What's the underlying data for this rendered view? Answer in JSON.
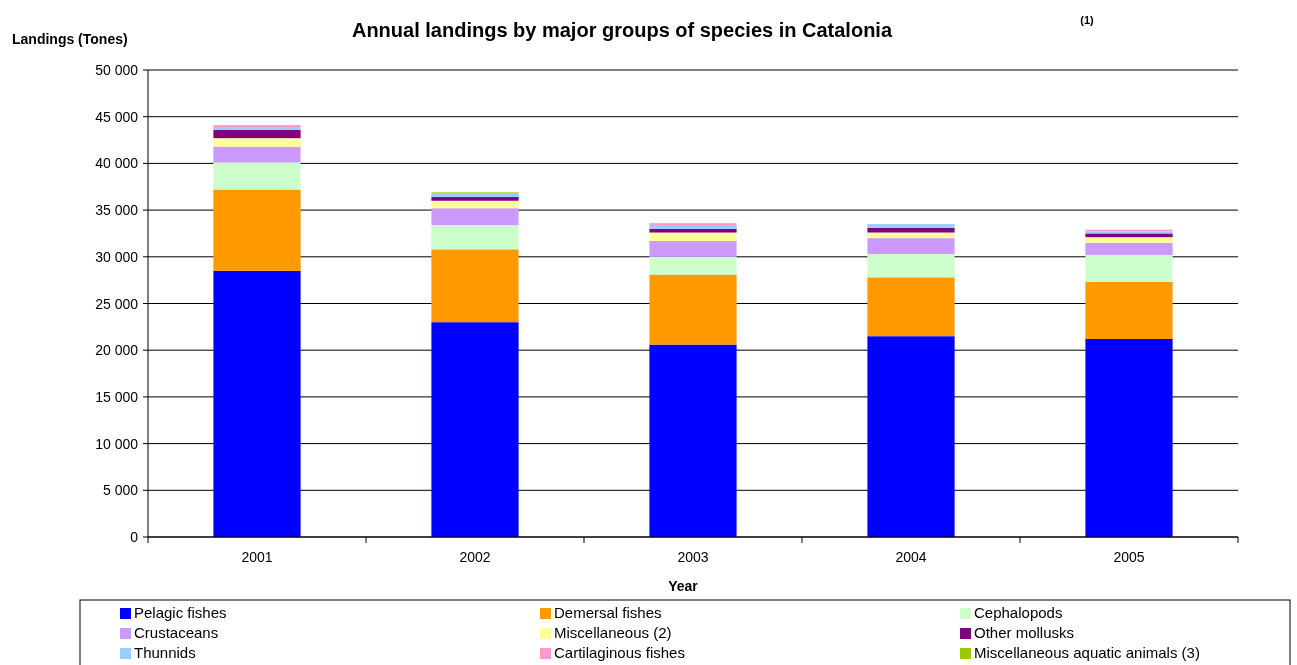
{
  "chart_data": {
    "type": "bar",
    "stacked": true,
    "title": "Annual landings by major groups of species in Catalonia",
    "annotations": [
      "(1)"
    ],
    "ylabel": "Landings (Tones)",
    "xlabel": "Year",
    "categories": [
      "2001",
      "2002",
      "2003",
      "2004",
      "2005"
    ],
    "series": [
      {
        "name": "Pelagic fishes",
        "color": "#0000ff",
        "values": [
          28500,
          23000,
          20600,
          21500,
          21200
        ]
      },
      {
        "name": "Demersal fishes",
        "color": "#ff9900",
        "values": [
          8700,
          7800,
          7500,
          6300,
          6100
        ]
      },
      {
        "name": "Cephalopods",
        "color": "#ccffcc",
        "values": [
          2900,
          2600,
          1900,
          2500,
          2900
        ]
      },
      {
        "name": "Crustaceans",
        "color": "#cc99ff",
        "values": [
          1700,
          1800,
          1700,
          1700,
          1300
        ]
      },
      {
        "name": "Miscellaneous (2)",
        "color": "#ffff99",
        "values": [
          900,
          800,
          900,
          600,
          600
        ]
      },
      {
        "name": "Other mollusks",
        "color": "#800080",
        "values": [
          900,
          400,
          400,
          500,
          400
        ]
      },
      {
        "name": "Thunnids",
        "color": "#99ccff",
        "values": [
          200,
          400,
          400,
          400,
          200
        ]
      },
      {
        "name": "Cartilaginous fishes",
        "color": "#ff99cc",
        "values": [
          300,
          0,
          200,
          0,
          200
        ]
      },
      {
        "name": "Miscellaneous aquatic animals (3)",
        "color": "#99cc00",
        "values": [
          0,
          100,
          0,
          0,
          0
        ]
      }
    ],
    "ylim": [
      0,
      50000
    ],
    "yticks": [
      0,
      {
        "value": 5000,
        "label": "5 000"
      },
      {
        "value": 10000,
        "label": "10 000"
      },
      {
        "value": 15000,
        "label": "15 000"
      },
      {
        "value": 20000,
        "label": "20 000"
      },
      {
        "value": 25000,
        "label": "25 000"
      },
      {
        "value": 30000,
        "label": "30 000"
      },
      {
        "value": 35000,
        "label": "35 000"
      },
      {
        "value": 40000,
        "label": "40 000"
      },
      {
        "value": 45000,
        "label": "45 000"
      },
      {
        "value": 50000,
        "label": "50 000"
      }
    ],
    "grid": "y",
    "legend": "bottom"
  }
}
